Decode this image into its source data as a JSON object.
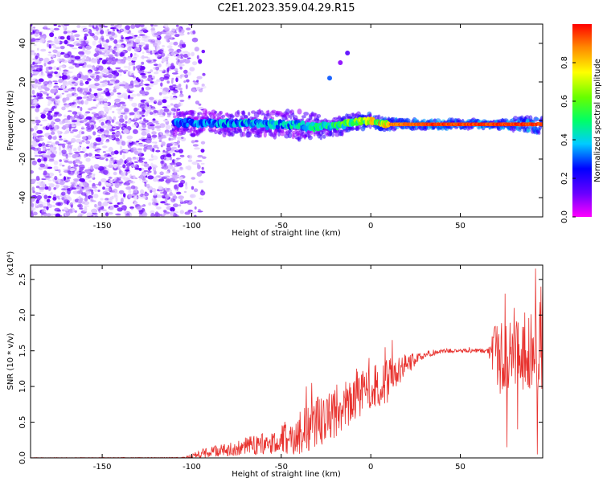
{
  "title": "C2E1.2023.359.04.29.R15",
  "chart_data": [
    {
      "type": "heatmap",
      "xlabel": "Height of straight line (km)",
      "ylabel": "Frequency (Hz)",
      "xlim": [
        -190,
        96
      ],
      "ylim": [
        -50,
        50
      ],
      "x_ticks": [
        -150,
        -100,
        -50,
        0,
        50
      ],
      "y_ticks": [
        -40,
        -20,
        0,
        20,
        40
      ],
      "colorbar": {
        "label": "Normalized spectral amplitude",
        "range": [
          0,
          1
        ],
        "ticks": [
          "0.0",
          "0.2",
          "0.4",
          "0.6",
          "0.8"
        ],
        "colormap": [
          "#ff00ff",
          "#6a00ff",
          "#0000ff",
          "#00ccff",
          "#00ff66",
          "#66ff00",
          "#ffff00",
          "#ff8800",
          "#ff0000"
        ]
      },
      "noise_region_x": [
        -190,
        -105
      ],
      "signal_band": {
        "center_hz": [
          [
            -110,
            -1
          ],
          [
            -80,
            -1.5
          ],
          [
            -50,
            -2
          ],
          [
            -30,
            -3
          ],
          [
            -20,
            -3
          ],
          [
            -10,
            -1
          ],
          [
            0,
            0
          ],
          [
            5,
            -1.5
          ],
          [
            10,
            -2
          ],
          [
            50,
            -2
          ],
          [
            96,
            -2
          ]
        ],
        "half_width_hz": [
          [
            -110,
            5
          ],
          [
            -70,
            5
          ],
          [
            -40,
            6
          ],
          [
            -20,
            4
          ],
          [
            0,
            3
          ],
          [
            20,
            2
          ],
          [
            70,
            1.5
          ],
          [
            96,
            4
          ]
        ],
        "peak_amplitude": [
          [
            -110,
            0.35
          ],
          [
            -60,
            0.45
          ],
          [
            -30,
            0.5
          ],
          [
            -10,
            0.7
          ],
          [
            10,
            0.9
          ],
          [
            30,
            1.0
          ],
          [
            96,
            1.0
          ]
        ]
      },
      "isolated_features": [
        {
          "x": -23,
          "y": 22,
          "amplitude": 0.3
        },
        {
          "x": -13,
          "y": 35,
          "amplitude": 0.15
        },
        {
          "x": -17,
          "y": 30,
          "amplitude": 0.1
        }
      ]
    },
    {
      "type": "line",
      "xlabel": "Height of straight line (km)",
      "ylabel": "SNR (10 * v/v)",
      "y_scale_label": "(x10⁴)",
      "xlim": [
        -190,
        96
      ],
      "ylim": [
        0,
        2.7
      ],
      "x_ticks": [
        -150,
        -100,
        -50,
        0,
        50
      ],
      "y_ticks": [
        0.0,
        0.5,
        1.0,
        1.5,
        2.0,
        2.5
      ],
      "series": [
        {
          "color": "#e8322e",
          "mean_envelope": [
            [
              -190,
              0.0
            ],
            [
              -105,
              0.0
            ],
            [
              -95,
              0.06
            ],
            [
              -80,
              0.12
            ],
            [
              -60,
              0.2
            ],
            [
              -50,
              0.25
            ],
            [
              -40,
              0.35
            ],
            [
              -30,
              0.5
            ],
            [
              -20,
              0.65
            ],
            [
              -10,
              0.85
            ],
            [
              0,
              0.95
            ],
            [
              10,
              1.1
            ],
            [
              20,
              1.3
            ],
            [
              30,
              1.45
            ],
            [
              40,
              1.5
            ],
            [
              60,
              1.5
            ],
            [
              70,
              1.5
            ],
            [
              80,
              1.45
            ],
            [
              90,
              1.5
            ],
            [
              96,
              1.55
            ]
          ],
          "noise_amplitude": [
            [
              -190,
              0.005
            ],
            [
              -105,
              0.01
            ],
            [
              -95,
              0.06
            ],
            [
              -60,
              0.15
            ],
            [
              -40,
              0.3
            ],
            [
              -20,
              0.4
            ],
            [
              0,
              0.3
            ],
            [
              10,
              0.35
            ],
            [
              20,
              0.15
            ],
            [
              30,
              0.05
            ],
            [
              40,
              0.03
            ],
            [
              65,
              0.03
            ],
            [
              72,
              0.6
            ],
            [
              80,
              0.5
            ],
            [
              90,
              0.6
            ],
            [
              96,
              0.9
            ]
          ],
          "spikes": [
            [
              -36,
              1.0
            ],
            [
              -33,
              1.05
            ],
            [
              -20,
              0.95
            ],
            [
              -8,
              1.25
            ],
            [
              -1,
              1.4
            ],
            [
              8,
              1.55
            ],
            [
              12,
              1.65
            ],
            [
              55,
              1.55
            ],
            [
              66,
              1.55
            ],
            [
              75,
              2.3
            ],
            [
              76,
              0.15
            ],
            [
              80,
              2.1
            ],
            [
              82,
              0.4
            ],
            [
              92,
              2.65
            ],
            [
              93,
              0.05
            ],
            [
              95,
              2.4
            ]
          ]
        }
      ]
    }
  ]
}
